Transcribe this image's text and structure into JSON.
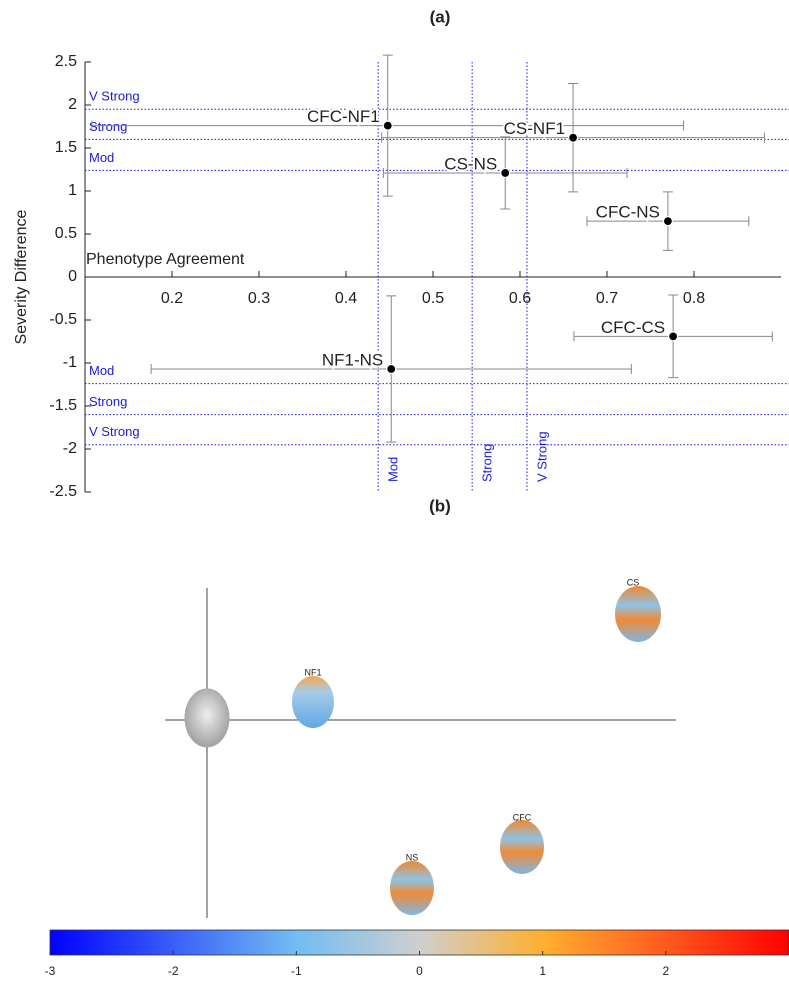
{
  "chart_data": [
    {
      "type": "errorscatter",
      "title": "(a)",
      "xlabel": "Phenotype Agreement",
      "ylabel": "Severity Difference",
      "categories": [
        "CFC-NF1",
        "CS-NF1",
        "CS-NS",
        "CFC-NS",
        "CFC-CS",
        "NF1-NS"
      ],
      "x": [
        0.448,
        0.661,
        0.583,
        0.77,
        0.776,
        0.452
      ],
      "values": [
        1.76,
        1.62,
        1.21,
        0.65,
        -0.69,
        -1.07
      ],
      "xerr": [
        0.34,
        0.22,
        0.14,
        0.093,
        0.114,
        0.276
      ],
      "yerr": [
        0.82,
        0.63,
        0.42,
        0.34,
        0.48,
        0.85
      ],
      "color": "#000000",
      "errcolor": "#888888",
      "xlim": [
        0.1,
        0.9
      ],
      "ylim": [
        -2.5,
        2.5
      ],
      "xticks": [
        0.2,
        0.3,
        0.4,
        0.5,
        0.6,
        0.7,
        0.8
      ],
      "yticks": [
        -2.5,
        -2,
        -1.5,
        -1,
        -0.5,
        0,
        0.5,
        1,
        1.5,
        2,
        2.5
      ],
      "threshold_color": "#1a1adc",
      "hlines": [
        {
          "value": 1.95,
          "label": "V Strong"
        },
        {
          "value": 1.6,
          "label": "Strong"
        },
        {
          "value": 1.24,
          "label": "Mod"
        },
        {
          "value": -1.24,
          "label": "Mod"
        },
        {
          "value": -1.6,
          "label": "Strong"
        },
        {
          "value": -1.95,
          "label": "V Strong"
        }
      ],
      "vlines": [
        {
          "value": 0.437,
          "label": "Mod"
        },
        {
          "value": 0.545,
          "label": "Strong"
        },
        {
          "value": 0.608,
          "label": "V Strong"
        }
      ]
    },
    {
      "type": "colorbar",
      "title": "(b)",
      "labels": [
        "CS",
        "NF1",
        "CFC",
        "NS"
      ],
      "clim": [
        -3,
        3
      ],
      "cticks": [
        -3,
        -2,
        -1,
        0,
        1,
        2
      ],
      "colorstops": [
        {
          "value": -3,
          "color": "#0000ff"
        },
        {
          "value": -1,
          "color": "#72bdf2"
        },
        {
          "value": 0,
          "color": "#cfcfcf"
        },
        {
          "value": 1,
          "color": "#ffb030"
        },
        {
          "value": 2,
          "color": "#ff5a1e"
        },
        {
          "value": 3,
          "color": "#ff0000"
        }
      ]
    }
  ]
}
